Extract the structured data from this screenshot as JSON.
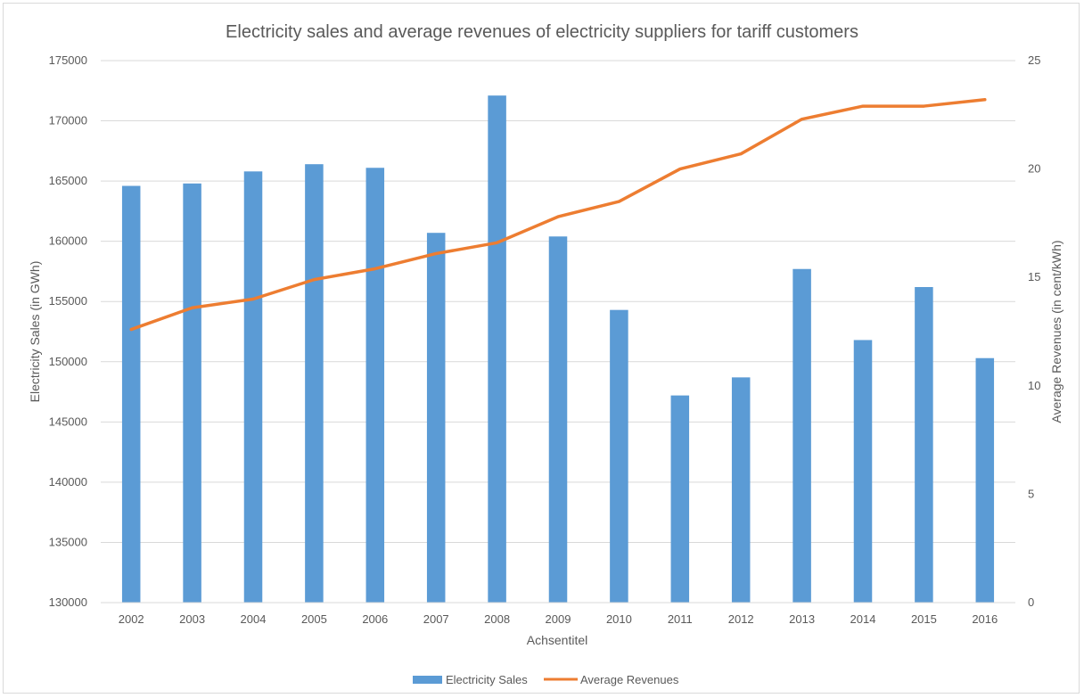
{
  "chart_data": {
    "type": "bar",
    "title": "Electricity sales and average revenues of electricity suppliers for tariff customers",
    "xlabel": "Achsentitel",
    "ylabel": "Electricity Sales (in GWh)",
    "y2label": "Average Revenues (in cent/kWh)",
    "categories": [
      "2002",
      "2003",
      "2004",
      "2005",
      "2006",
      "2007",
      "2008",
      "2009",
      "2010",
      "2011",
      "2012",
      "2013",
      "2014",
      "2015",
      "2016"
    ],
    "ylim": [
      130000,
      175000
    ],
    "y_ticks": [
      "130000",
      "135000",
      "140000",
      "145000",
      "150000",
      "155000",
      "160000",
      "165000",
      "170000",
      "175000"
    ],
    "y2lim": [
      0,
      25
    ],
    "y2_ticks": [
      "0",
      "5",
      "10",
      "15",
      "20",
      "25"
    ],
    "grid": true,
    "legend_position": "bottom",
    "series": [
      {
        "name": "Electricity Sales",
        "type": "bar",
        "axis": "left",
        "color": "#5b9bd5",
        "values": [
          164600,
          164800,
          165800,
          166400,
          166100,
          160700,
          172100,
          160400,
          154300,
          147200,
          148700,
          157700,
          151800,
          156200,
          150300
        ]
      },
      {
        "name": "Average Revenues",
        "type": "line",
        "axis": "right",
        "color": "#ed7d31",
        "values": [
          12.6,
          13.6,
          14.0,
          14.9,
          15.4,
          16.1,
          16.6,
          17.8,
          18.5,
          20.0,
          20.7,
          22.3,
          22.9,
          22.9,
          23.2
        ]
      }
    ]
  }
}
